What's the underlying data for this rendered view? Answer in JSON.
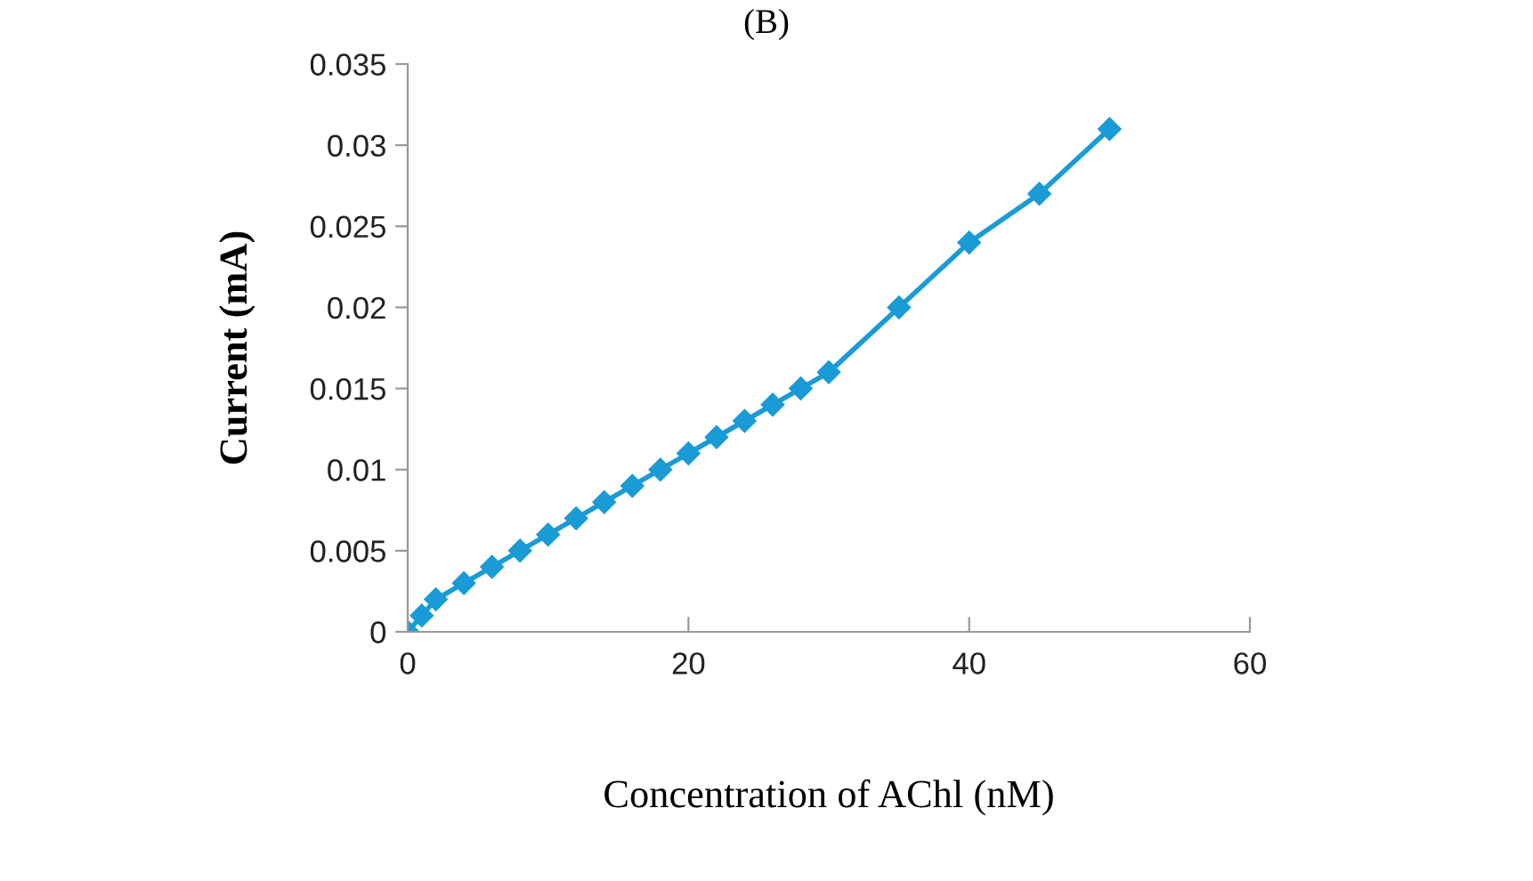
{
  "chart_data": {
    "type": "line",
    "title": "(B)",
    "xlabel": "Concentration of AChl (nM)",
    "ylabel": "Current (mA)",
    "x": [
      0,
      1,
      2,
      4,
      6,
      8,
      10,
      12,
      14,
      16,
      18,
      20,
      22,
      24,
      26,
      28,
      30,
      35,
      40,
      45,
      50
    ],
    "series": [
      {
        "color": "#1a9bd7",
        "values": [
          0,
          0.001,
          0.002,
          0.003,
          0.004,
          0.005,
          0.006,
          0.007,
          0.008,
          0.009,
          0.01,
          0.011,
          0.012,
          0.013,
          0.014,
          0.015,
          0.016,
          0.02,
          0.024,
          0.027,
          0.031
        ]
      }
    ],
    "xlim": [
      0,
      60
    ],
    "xticks": [
      0,
      20,
      40,
      60
    ],
    "ylim": [
      0,
      0.035
    ],
    "yticks": [
      {
        "value": 0,
        "label": "0"
      },
      {
        "value": 0.005,
        "label": "0.005"
      },
      {
        "value": 0.01,
        "label": "0.01"
      },
      {
        "value": 0.015,
        "label": "0.015"
      },
      {
        "value": 0.02,
        "label": "0.02"
      },
      {
        "value": 0.025,
        "label": "0.025"
      },
      {
        "value": 0.03,
        "label": "0.03"
      },
      {
        "value": 0.035,
        "label": "0.035"
      }
    ],
    "grid": false,
    "legend": false,
    "marker": "diamond",
    "line_style": "solid"
  }
}
